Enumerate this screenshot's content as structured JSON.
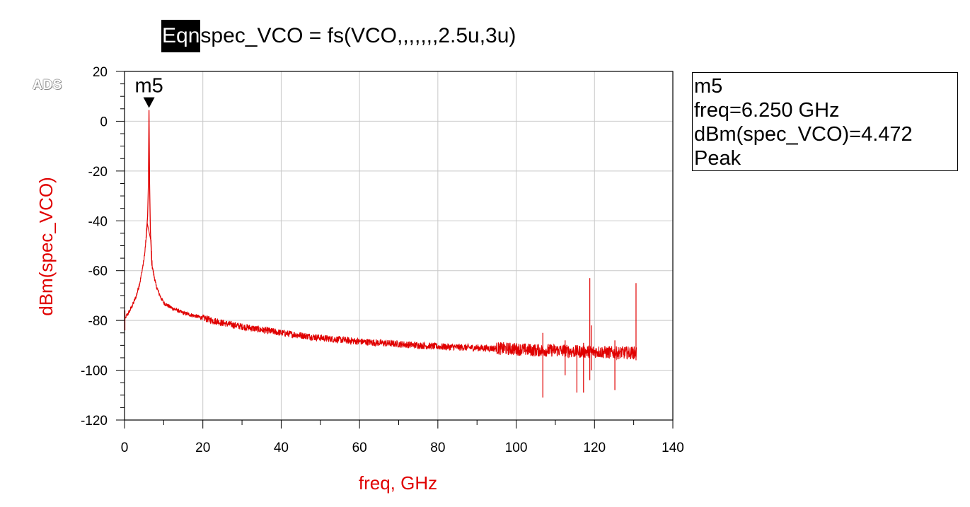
{
  "equation": {
    "tag": "Eqn",
    "text": "spec_VCO = fs(VCO,,,,,,,2.5u,3u)"
  },
  "logo": "ADS",
  "marker_box": {
    "name": "m5",
    "freq": "freq=6.250 GHz",
    "value": "dBm(spec_VCO)=4.472",
    "mode": "Peak"
  },
  "colors": {
    "trace": "#e00000",
    "grid": "#c8c8c8",
    "axis_title": "#e00000"
  },
  "chart_data": {
    "type": "line",
    "title": "",
    "xlabel": "freq, GHz",
    "ylabel": "dBm(spec_VCO)",
    "xlim": [
      0,
      140
    ],
    "ylim": [
      -120,
      20
    ],
    "xticks": [
      "0",
      "20",
      "40",
      "60",
      "80",
      "100",
      "120",
      "140"
    ],
    "yticks": [
      "20",
      "0",
      "-20",
      "-40",
      "-60",
      "-80",
      "-100",
      "-120"
    ],
    "grid": true,
    "marker": {
      "label": "m5",
      "x": 6.25,
      "y": 4.472
    },
    "series": [
      {
        "x": [
          0,
          0.5,
          1,
          2,
          3,
          4,
          5,
          5.5,
          5.9,
          6.1,
          6.25,
          6.4,
          6.6,
          7,
          8,
          9,
          10,
          12,
          15,
          20,
          25,
          30,
          40,
          50,
          60,
          70,
          80,
          90,
          100,
          105,
          110,
          115,
          120,
          125,
          130,
          130.8
        ],
        "y": [
          -80,
          -78,
          -77,
          -74,
          -70,
          -64,
          -55,
          -47,
          -38,
          -25,
          4.472,
          -25,
          -44,
          -58,
          -66,
          -70,
          -73,
          -75,
          -77,
          -79,
          -81,
          -82.5,
          -85,
          -87,
          -88.5,
          -89.5,
          -90.5,
          -91,
          -91.5,
          -92,
          -92,
          -92.5,
          -92.5,
          -93,
          -93,
          -93
        ]
      }
    ],
    "spurs": [
      {
        "x": 106.8,
        "low": -111,
        "high": -85
      },
      {
        "x": 112.5,
        "low": -102,
        "high": -88
      },
      {
        "x": 115.5,
        "low": -109,
        "high": -91
      },
      {
        "x": 117.2,
        "low": -109,
        "high": -89
      },
      {
        "x": 118.8,
        "low": -104,
        "high": -63
      },
      {
        "x": 119.2,
        "low": -100,
        "high": -82
      },
      {
        "x": 125.2,
        "low": -108,
        "high": -88
      },
      {
        "x": 130.6,
        "low": -96,
        "high": -65
      }
    ]
  }
}
